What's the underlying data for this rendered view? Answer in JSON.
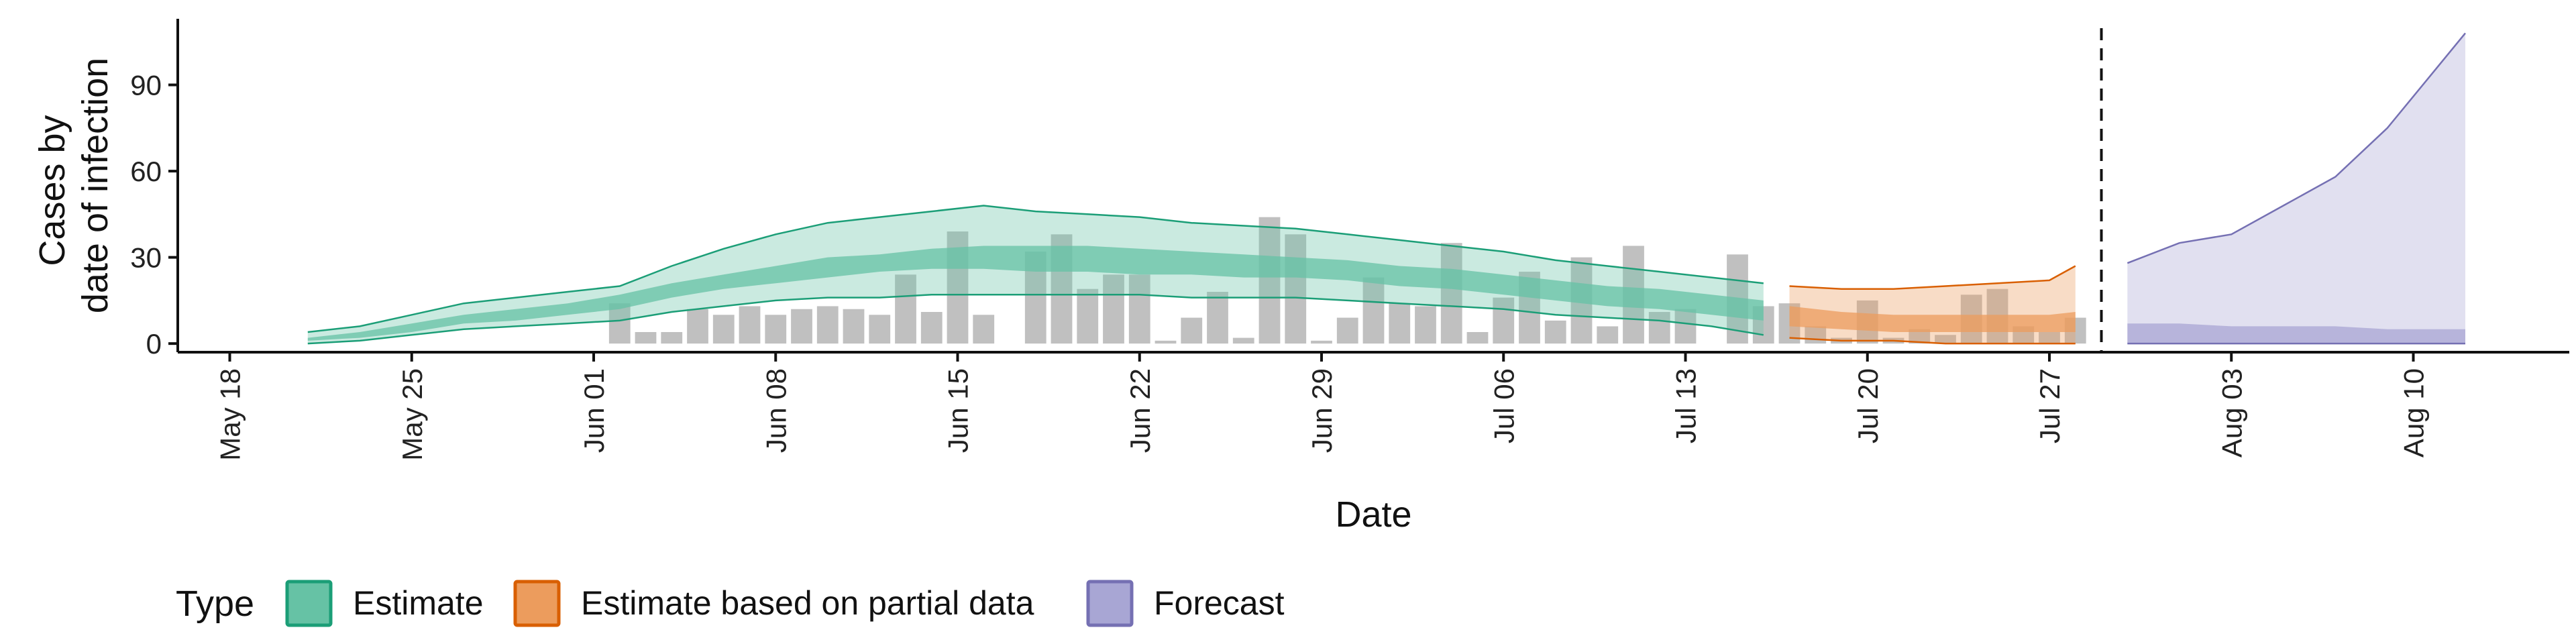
{
  "chart_data": {
    "type": "area",
    "xlabel": "Date",
    "ylabel_lines": [
      "Cases by",
      "date of infection"
    ],
    "ylim": [
      -3,
      113
    ],
    "xlim": [
      "2020-05-16",
      "2020-08-16"
    ],
    "y_ticks": [
      0,
      30,
      60,
      90
    ],
    "x_ticks": [
      {
        "date": "2020-05-18",
        "label": "May 18"
      },
      {
        "date": "2020-05-25",
        "label": "May 25"
      },
      {
        "date": "2020-06-01",
        "label": "Jun 01"
      },
      {
        "date": "2020-06-08",
        "label": "Jun 08"
      },
      {
        "date": "2020-06-15",
        "label": "Jun 15"
      },
      {
        "date": "2020-06-22",
        "label": "Jun 22"
      },
      {
        "date": "2020-06-29",
        "label": "Jun 29"
      },
      {
        "date": "2020-07-06",
        "label": "Jul 06"
      },
      {
        "date": "2020-07-13",
        "label": "Jul 13"
      },
      {
        "date": "2020-07-20",
        "label": "Jul 20"
      },
      {
        "date": "2020-07-27",
        "label": "Jul 27"
      },
      {
        "date": "2020-08-03",
        "label": "Aug 03"
      },
      {
        "date": "2020-08-10",
        "label": "Aug 10"
      }
    ],
    "vline_date": "2020-07-29",
    "grid": false,
    "legend": {
      "title": "Type",
      "position": "bottom",
      "items": [
        {
          "label": "Estimate",
          "fill": "#66C2A5",
          "stroke": "#1B9E77"
        },
        {
          "label": "Estimate based on partial data",
          "fill": "#EC9C5D",
          "stroke": "#D95F02"
        },
        {
          "label": "Forecast",
          "fill": "#A8A6D4",
          "stroke": "#7570B3"
        }
      ]
    },
    "observed_cases": {
      "color": "#BDBDBD",
      "dates": [
        "2020-06-02",
        "2020-06-03",
        "2020-06-04",
        "2020-06-05",
        "2020-06-06",
        "2020-06-07",
        "2020-06-08",
        "2020-06-09",
        "2020-06-10",
        "2020-06-11",
        "2020-06-12",
        "2020-06-13",
        "2020-06-14",
        "2020-06-15",
        "2020-06-16",
        "2020-06-17",
        "2020-06-18",
        "2020-06-19",
        "2020-06-20",
        "2020-06-21",
        "2020-06-22",
        "2020-06-23",
        "2020-06-24",
        "2020-06-25",
        "2020-06-26",
        "2020-06-27",
        "2020-06-28",
        "2020-06-29",
        "2020-06-30",
        "2020-07-01",
        "2020-07-02",
        "2020-07-03",
        "2020-07-04",
        "2020-07-05",
        "2020-07-06",
        "2020-07-07",
        "2020-07-08",
        "2020-07-09",
        "2020-07-10",
        "2020-07-11",
        "2020-07-12",
        "2020-07-13",
        "2020-07-14",
        "2020-07-15",
        "2020-07-16",
        "2020-07-17",
        "2020-07-18",
        "2020-07-19",
        "2020-07-20",
        "2020-07-21",
        "2020-07-22",
        "2020-07-23",
        "2020-07-24",
        "2020-07-25",
        "2020-07-26",
        "2020-07-27",
        "2020-07-28"
      ],
      "values": [
        14,
        4,
        4,
        12,
        10,
        13,
        10,
        12,
        13,
        12,
        10,
        24,
        11,
        39,
        10,
        0,
        32,
        38,
        19,
        24,
        24,
        1,
        9,
        18,
        2,
        44,
        38,
        1,
        9,
        23,
        14,
        13,
        35,
        4,
        16,
        25,
        8,
        30,
        6,
        34,
        11,
        12,
        0,
        31,
        13,
        14,
        6,
        2,
        15,
        2,
        5,
        3,
        17,
        19,
        6,
        4,
        9
      ]
    },
    "series": [
      {
        "name": "Estimate",
        "fill": "#66C2A5",
        "stroke": "#1B9E77",
        "dates": [
          "2020-05-21",
          "2020-05-23",
          "2020-05-25",
          "2020-05-27",
          "2020-05-29",
          "2020-05-31",
          "2020-06-02",
          "2020-06-04",
          "2020-06-06",
          "2020-06-08",
          "2020-06-10",
          "2020-06-12",
          "2020-06-14",
          "2020-06-16",
          "2020-06-18",
          "2020-06-20",
          "2020-06-22",
          "2020-06-24",
          "2020-06-26",
          "2020-06-28",
          "2020-06-30",
          "2020-07-02",
          "2020-07-04",
          "2020-07-06",
          "2020-07-08",
          "2020-07-10",
          "2020-07-12",
          "2020-07-14",
          "2020-07-16"
        ],
        "lower_90": [
          0,
          1,
          3,
          5,
          6,
          7,
          8,
          11,
          13,
          15,
          16,
          16,
          17,
          17,
          17,
          17,
          17,
          16,
          16,
          16,
          15,
          14,
          13,
          12,
          10,
          9,
          8,
          6,
          3
        ],
        "upper_90": [
          4,
          6,
          10,
          14,
          16,
          18,
          20,
          27,
          33,
          38,
          42,
          44,
          46,
          48,
          46,
          45,
          44,
          42,
          41,
          40,
          38,
          36,
          34,
          32,
          29,
          27,
          25,
          23,
          21
        ],
        "lower_50": [
          1,
          2,
          4,
          7,
          8,
          10,
          12,
          16,
          19,
          21,
          23,
          25,
          26,
          26,
          25,
          25,
          24,
          24,
          23,
          23,
          22,
          20,
          19,
          17,
          15,
          13,
          12,
          10,
          8
        ],
        "upper_50": [
          2,
          4,
          7,
          10,
          12,
          14,
          17,
          21,
          24,
          27,
          30,
          31,
          33,
          34,
          34,
          34,
          33,
          32,
          31,
          30,
          29,
          27,
          26,
          24,
          22,
          20,
          19,
          17,
          15
        ]
      },
      {
        "name": "Estimate based on partial data",
        "fill": "#EC9C5D",
        "stroke": "#D95F02",
        "dates": [
          "2020-07-17",
          "2020-07-19",
          "2020-07-21",
          "2020-07-23",
          "2020-07-25",
          "2020-07-27",
          "2020-07-28"
        ],
        "lower_90": [
          2,
          1,
          1,
          0,
          0,
          0,
          0
        ],
        "upper_90": [
          20,
          19,
          19,
          20,
          21,
          22,
          27
        ],
        "lower_50": [
          6,
          5,
          4,
          4,
          4,
          4,
          4
        ],
        "upper_50": [
          13,
          11,
          10,
          10,
          10,
          10,
          11
        ]
      },
      {
        "name": "Forecast",
        "fill": "#A8A6D4",
        "stroke": "#7570B3",
        "dates": [
          "2020-07-30",
          "2020-08-01",
          "2020-08-03",
          "2020-08-05",
          "2020-08-07",
          "2020-08-09",
          "2020-08-11",
          "2020-08-12"
        ],
        "lower_90": [
          0,
          0,
          0,
          0,
          0,
          0,
          0,
          0
        ],
        "upper_90": [
          28,
          35,
          38,
          48,
          58,
          75,
          97,
          108
        ],
        "lower_50": [
          0,
          0,
          0,
          0,
          0,
          0,
          0,
          0
        ],
        "upper_50": [
          7,
          7,
          6,
          6,
          6,
          5,
          5,
          5
        ]
      }
    ]
  }
}
